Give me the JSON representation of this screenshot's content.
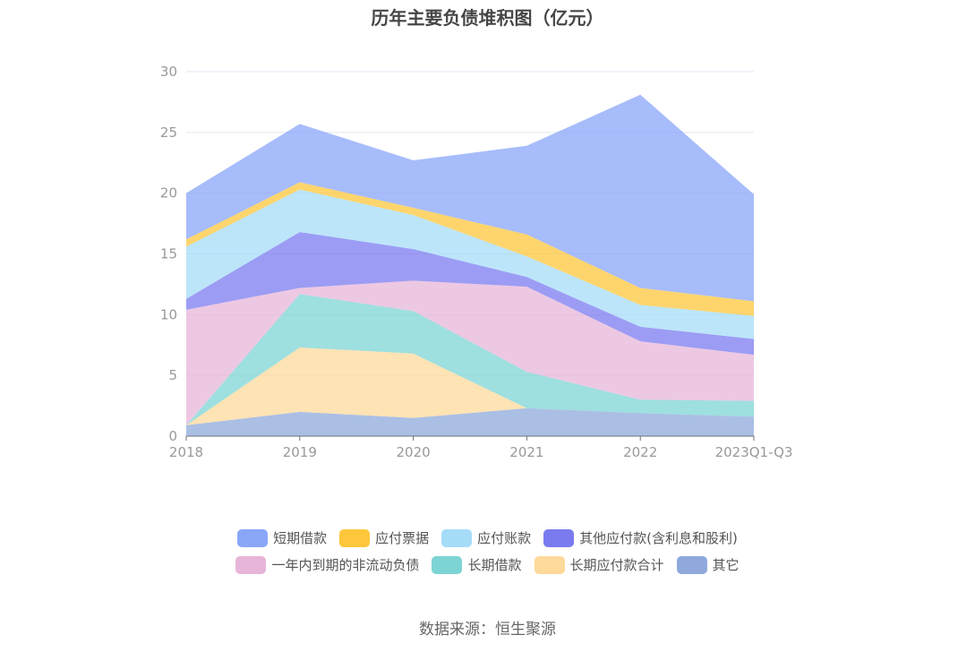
{
  "title": "历年主要负债堆积图（亿元）",
  "source": "数据来源：恒生聚源",
  "chart_data": {
    "type": "area",
    "stacked": true,
    "categories": [
      "2018",
      "2019",
      "2020",
      "2021",
      "2022",
      "2023Q1-Q3"
    ],
    "ylim": [
      0,
      30
    ],
    "yticks": [
      0,
      5,
      10,
      15,
      20,
      25,
      30
    ],
    "grid": true,
    "legend_position": "bottom",
    "series": [
      {
        "name": "其它",
        "color": "#8fa9dc",
        "values": [
          0.9,
          2.0,
          1.5,
          2.3,
          1.9,
          1.6
        ]
      },
      {
        "name": "长期应付款合计",
        "color": "#fdd99b",
        "values": [
          0.0,
          5.3,
          5.3,
          0.0,
          0.0,
          0.0
        ]
      },
      {
        "name": "长期借款",
        "color": "#7dd4d4",
        "values": [
          0.0,
          4.4,
          3.5,
          3.0,
          1.1,
          1.3
        ]
      },
      {
        "name": "一年内到期的非流动负债",
        "color": "#e7b5da",
        "values": [
          9.5,
          0.5,
          2.5,
          7.0,
          4.8,
          3.8
        ]
      },
      {
        "name": "其他应付款(含利息和股利)",
        "color": "#7b7bf0",
        "values": [
          0.9,
          4.6,
          2.6,
          0.8,
          1.2,
          1.3
        ]
      },
      {
        "name": "应付账款",
        "color": "#a5dcf8",
        "values": [
          4.3,
          3.5,
          2.8,
          1.7,
          1.8,
          1.9
        ]
      },
      {
        "name": "应付票据",
        "color": "#fdc73c",
        "values": [
          0.6,
          0.6,
          0.6,
          1.8,
          1.4,
          1.2
        ]
      },
      {
        "name": "短期借款",
        "color": "#8aa6f8",
        "values": [
          3.8,
          4.8,
          3.9,
          7.3,
          15.9,
          8.8
        ]
      }
    ]
  },
  "legend": {
    "row1": [
      {
        "label": "短期借款",
        "color": "#8aa6f8"
      },
      {
        "label": "应付票据",
        "color": "#fdc73c"
      },
      {
        "label": "应付账款",
        "color": "#a5dcf8"
      },
      {
        "label": "其他应付款(含利息和股利)",
        "color": "#7b7bf0"
      }
    ],
    "row2": [
      {
        "label": "一年内到期的非流动负债",
        "color": "#e7b5da"
      },
      {
        "label": "长期借款",
        "color": "#7dd4d4"
      },
      {
        "label": "长期应付款合计",
        "color": "#fdd99b"
      },
      {
        "label": "其它",
        "color": "#8fa9dc"
      }
    ]
  }
}
